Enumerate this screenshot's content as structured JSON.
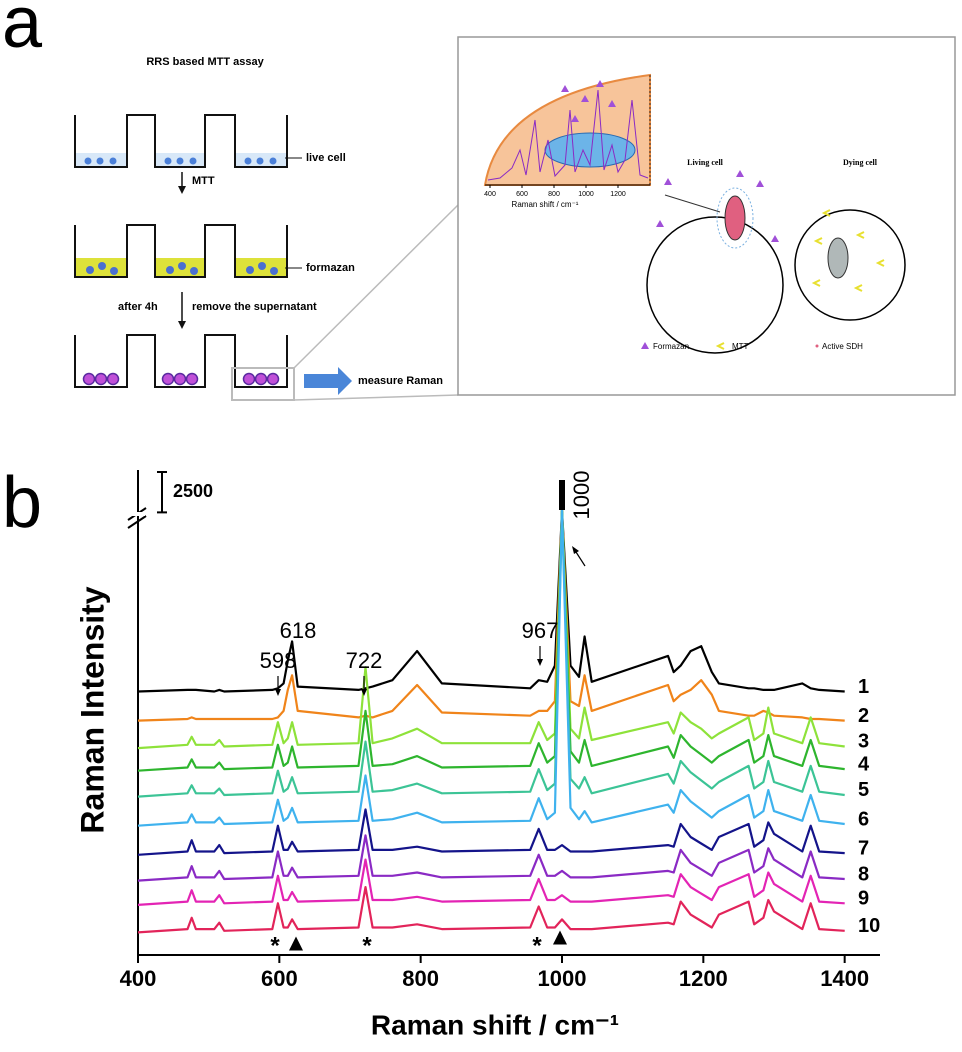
{
  "panel_a": {
    "label": "a",
    "title": "RRS based MTT assay",
    "steps": [
      "live cell",
      "formazan",
      "measure Raman"
    ],
    "arrows": [
      "MTT",
      "after 4h",
      "remove the supernatant"
    ],
    "inset": {
      "x_label": "Raman shift / cm⁻¹",
      "xticks": [
        400,
        600,
        800,
        1000,
        1200
      ],
      "cells": [
        "Living cell",
        "Dying cell"
      ],
      "legend": [
        "Formazan",
        "MTT",
        "Active SDH"
      ]
    }
  },
  "chart_data": {
    "type": "line",
    "label": "b",
    "x_label": "Raman shift / cm⁻¹",
    "y_label": "Raman Intensity",
    "xlim": [
      400,
      1450
    ],
    "xticks": [
      400,
      600,
      800,
      1000,
      1200,
      1400
    ],
    "ylim": [
      0,
      30000
    ],
    "scale_bar": 2500,
    "annotations": [
      "598",
      "618",
      "722",
      "967",
      "1000",
      "*",
      "▲",
      "*",
      "*",
      "▲"
    ],
    "x": [
      400,
      470,
      476,
      482,
      508,
      515,
      522,
      590,
      598,
      606,
      612,
      618,
      626,
      712,
      722,
      732,
      760,
      795,
      830,
      955,
      967,
      979,
      990,
      1000,
      1012,
      1024,
      1032,
      1042,
      1150,
      1158,
      1168,
      1182,
      1197,
      1212,
      1222,
      1264,
      1272,
      1285,
      1292,
      1300,
      1340,
      1352,
      1364,
      1400
    ],
    "series": [
      {
        "name": "1",
        "color": "#000000",
        "values": [
          16300,
          16400,
          16400,
          16400,
          16300,
          16400,
          16300,
          16400,
          16500,
          16800,
          18200,
          19400,
          16600,
          16400,
          16500,
          16600,
          17000,
          18800,
          16800,
          16500,
          17000,
          16900,
          17900,
          27500,
          17900,
          17200,
          19700,
          16900,
          18500,
          17500,
          17900,
          18800,
          19100,
          17500,
          16800,
          16500,
          16500,
          16400,
          16400,
          16400,
          16800,
          16500,
          16400,
          16300
        ]
      },
      {
        "name": "2",
        "color": "#f0841a",
        "values": [
          14500,
          14600,
          14700,
          14600,
          14600,
          14600,
          14600,
          14600,
          14700,
          15100,
          16400,
          17300,
          15100,
          14700,
          14800,
          14700,
          15100,
          16700,
          15000,
          14800,
          15100,
          15100,
          15700,
          27500,
          15700,
          15400,
          17300,
          15100,
          16700,
          15700,
          16100,
          16400,
          17000,
          16100,
          15100,
          14800,
          14800,
          15100,
          15000,
          14800,
          14700,
          14600,
          14600,
          14500
        ]
      },
      {
        "name": "3",
        "color": "#8ee23a",
        "values": [
          12800,
          13000,
          13500,
          13000,
          13000,
          13300,
          12900,
          13000,
          14400,
          13100,
          13400,
          14400,
          13000,
          13100,
          17800,
          13100,
          13400,
          14000,
          13100,
          13100,
          14400,
          13300,
          13700,
          27500,
          14000,
          13400,
          15300,
          13300,
          14400,
          13700,
          15000,
          14400,
          14000,
          13400,
          13700,
          14700,
          13300,
          13700,
          15300,
          13700,
          13100,
          14700,
          13100,
          12900
        ]
      },
      {
        "name": "4",
        "color": "#2eb52e",
        "values": [
          11400,
          11600,
          12100,
          11600,
          11600,
          11900,
          11500,
          11600,
          13000,
          11700,
          11900,
          12900,
          11600,
          11700,
          15100,
          11700,
          11800,
          12300,
          11600,
          11700,
          13100,
          11900,
          12300,
          27500,
          12600,
          11900,
          13300,
          11700,
          12900,
          12200,
          13600,
          12900,
          12400,
          11900,
          12300,
          13300,
          11900,
          12300,
          13600,
          12300,
          11700,
          13300,
          11700,
          11500
        ]
      },
      {
        "name": "5",
        "color": "#3cc496",
        "values": [
          9800,
          10000,
          10500,
          10000,
          10000,
          10300,
          9900,
          10000,
          11400,
          10100,
          10300,
          11000,
          10000,
          10100,
          13200,
          10100,
          10200,
          10600,
          10000,
          10100,
          11500,
          10200,
          10600,
          27500,
          10900,
          10300,
          11000,
          10000,
          11200,
          10600,
          12000,
          11300,
          10800,
          10300,
          10700,
          11700,
          10300,
          10700,
          12000,
          10700,
          10100,
          11700,
          10100,
          9900
        ]
      },
      {
        "name": "6",
        "color": "#3fb2ee",
        "values": [
          8000,
          8200,
          8700,
          8200,
          8200,
          8500,
          8100,
          8200,
          9600,
          8300,
          8500,
          9100,
          8200,
          8300,
          11100,
          8300,
          8400,
          8800,
          8200,
          8300,
          9700,
          8400,
          8800,
          27500,
          9100,
          8400,
          8900,
          8200,
          9300,
          8800,
          10200,
          9500,
          9000,
          8500,
          8900,
          9900,
          8500,
          8900,
          10200,
          8900,
          8300,
          9900,
          8300,
          8100
        ]
      },
      {
        "name": "7",
        "color": "#14148a",
        "values": [
          6200,
          6400,
          7100,
          6400,
          6400,
          6800,
          6300,
          6400,
          8000,
          6500,
          6500,
          7000,
          6400,
          6500,
          9000,
          6500,
          6500,
          6700,
          6400,
          6500,
          7800,
          6500,
          6500,
          6800,
          6400,
          6400,
          6400,
          6400,
          6800,
          6700,
          8100,
          7300,
          6900,
          6500,
          7300,
          8100,
          6700,
          7100,
          8200,
          7500,
          6400,
          8000,
          6400,
          6300
        ]
      },
      {
        "name": "8",
        "color": "#8a2ac4",
        "values": [
          4600,
          4800,
          5500,
          4800,
          4800,
          5200,
          4700,
          4800,
          6400,
          4900,
          4900,
          5400,
          4800,
          4900,
          7400,
          4900,
          4900,
          5100,
          4800,
          4900,
          6200,
          4900,
          4900,
          5200,
          4800,
          4800,
          4800,
          4800,
          5200,
          5100,
          6500,
          5700,
          5300,
          4900,
          5700,
          6500,
          5100,
          5500,
          6600,
          5900,
          4800,
          6400,
          4800,
          4700
        ]
      },
      {
        "name": "9",
        "color": "#e324b4",
        "values": [
          3100,
          3300,
          4000,
          3300,
          3300,
          3700,
          3200,
          3300,
          4900,
          3400,
          3400,
          3900,
          3300,
          3400,
          5900,
          3400,
          3400,
          3600,
          3300,
          3400,
          4700,
          3400,
          3400,
          3700,
          3300,
          3300,
          3300,
          3300,
          3700,
          3600,
          5000,
          4200,
          3800,
          3400,
          4200,
          5000,
          3600,
          4000,
          5100,
          4400,
          3300,
          4900,
          3300,
          3200
        ]
      },
      {
        "name": "10",
        "color": "#e2245a",
        "values": [
          1400,
          1600,
          2300,
          1600,
          1600,
          2000,
          1500,
          1600,
          3200,
          1700,
          1700,
          2200,
          1600,
          1700,
          4200,
          1700,
          1700,
          1900,
          1600,
          1700,
          3000,
          1700,
          1700,
          2200,
          1600,
          1600,
          1600,
          1600,
          2000,
          1900,
          3300,
          2500,
          2100,
          1700,
          2500,
          3300,
          1900,
          2300,
          3400,
          2700,
          1600,
          3200,
          1600,
          1500
        ]
      }
    ]
  }
}
